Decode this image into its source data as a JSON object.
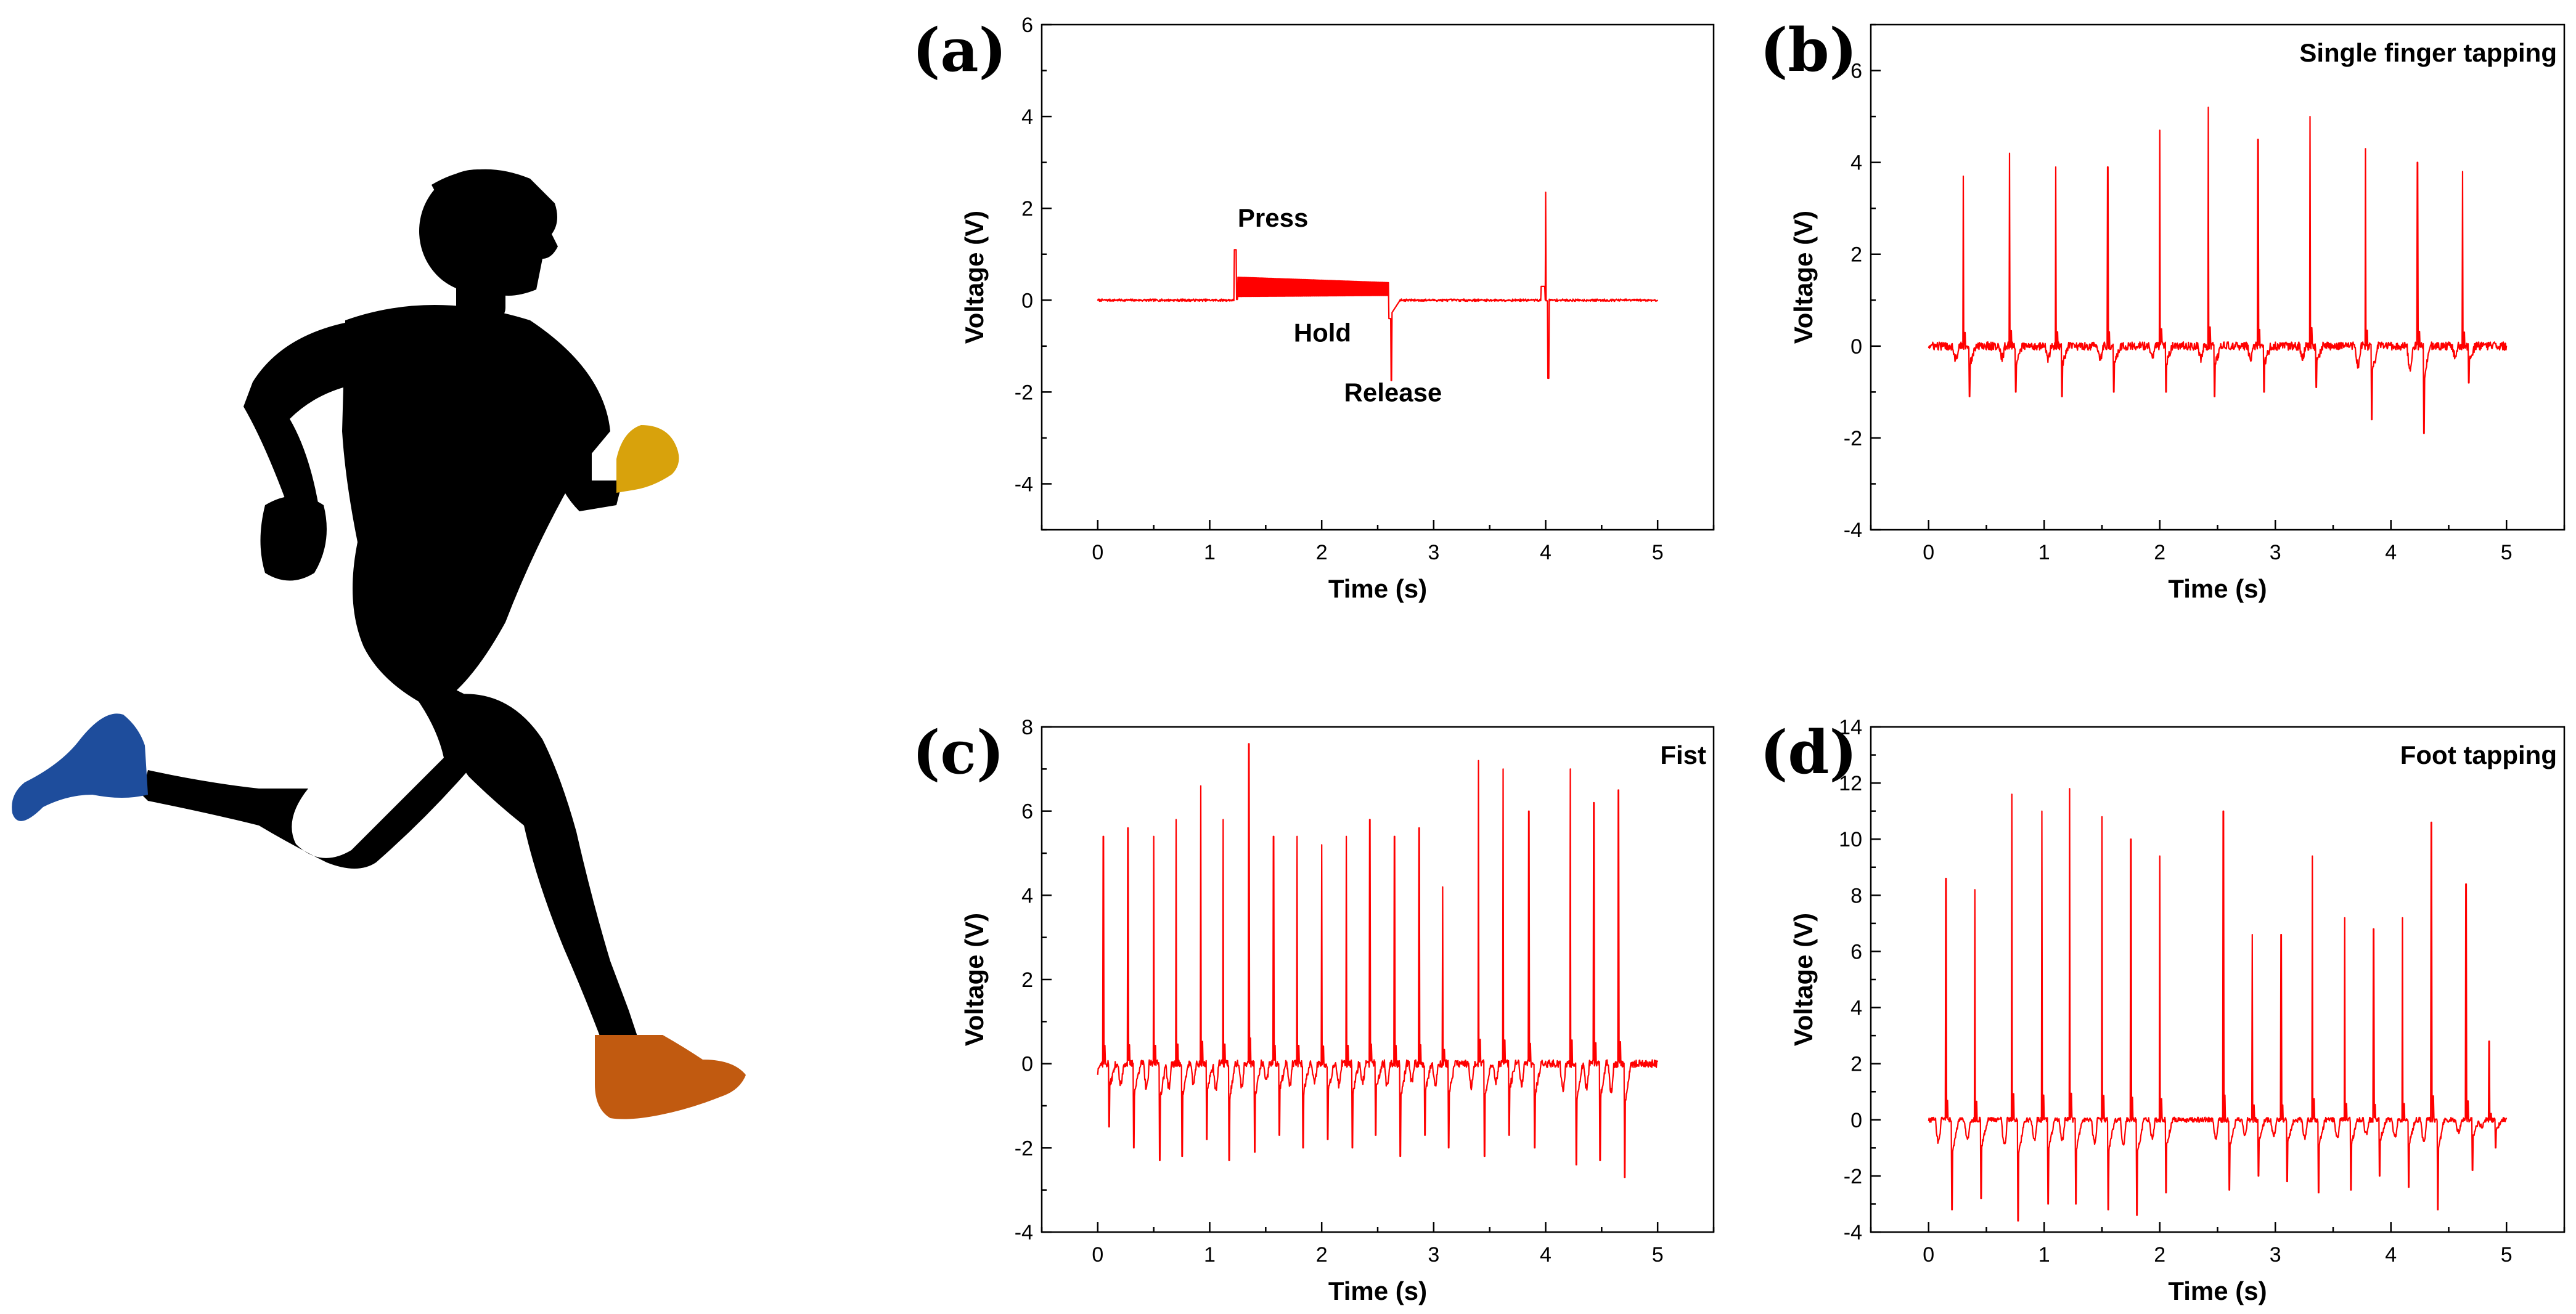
{
  "colors": {
    "series": "#ff0000",
    "body": "#000000",
    "hand": "#d8a20c",
    "back_shoe": "#1e4d9c",
    "front_shoe": "#c15a10"
  },
  "illustration": {
    "icon": "running-person-icon"
  },
  "chart_data": [
    {
      "id": "a",
      "type": "line",
      "panel_label": "(a)",
      "title": "",
      "xlabel": "Time (s)",
      "ylabel": "Voltage (V)",
      "xlim": [
        -0.5,
        5.5
      ],
      "ylim": [
        -5,
        6
      ],
      "xticks": [
        0,
        1,
        2,
        3,
        4,
        5
      ],
      "yticks": [
        -4,
        -2,
        0,
        2,
        4,
        6
      ],
      "annotations": [
        {
          "text": "Press",
          "x": 1.25,
          "y": 1.6
        },
        {
          "text": "Hold",
          "x": 1.75,
          "y": -0.9
        },
        {
          "text": "Release",
          "x": 2.2,
          "y": -2.2
        }
      ],
      "series": [
        {
          "name": "signal",
          "events": [
            {
              "t": 1.22,
              "kind": "press",
              "peak": 1.1
            },
            {
              "t_start": 1.25,
              "t_end": 2.6,
              "kind": "hold",
              "amplitude": 0.35
            },
            {
              "t": 2.62,
              "kind": "release",
              "trough": -1.75
            },
            {
              "t": 4.0,
              "kind": "spike",
              "peak": 2.35,
              "trough": -1.7
            }
          ]
        }
      ]
    },
    {
      "id": "b",
      "type": "line",
      "panel_label": "(b)",
      "title": "Single finger tapping",
      "xlabel": "Time (s)",
      "ylabel": "Voltage (V)",
      "xlim": [
        -0.5,
        5.5
      ],
      "ylim": [
        -4,
        7
      ],
      "xticks": [
        0,
        1,
        2,
        3,
        4,
        5
      ],
      "yticks": [
        -4,
        -2,
        0,
        2,
        4,
        6
      ],
      "series": [
        {
          "name": "signal",
          "peak_times": [
            0.3,
            0.7,
            1.1,
            1.55,
            2.0,
            2.42,
            2.85,
            3.3,
            3.78,
            4.23,
            4.62
          ],
          "peak_values": [
            3.7,
            4.2,
            3.9,
            3.9,
            4.7,
            5.2,
            4.5,
            5.0,
            4.3,
            4.0,
            3.8
          ],
          "trough_values": [
            -1.1,
            -1.0,
            -1.1,
            -1.0,
            -1.0,
            -1.1,
            -1.0,
            -0.9,
            -1.6,
            -1.9,
            -0.8
          ]
        }
      ]
    },
    {
      "id": "c",
      "type": "line",
      "panel_label": "(c)",
      "title": "Fist",
      "xlabel": "Time (s)",
      "ylabel": "Voltage (V)",
      "xlim": [
        -0.5,
        5.5
      ],
      "ylim": [
        -4,
        8
      ],
      "xticks": [
        0,
        1,
        2,
        3,
        4,
        5
      ],
      "yticks": [
        -4,
        -2,
        0,
        2,
        4,
        6,
        8
      ],
      "series": [
        {
          "name": "signal",
          "peak_times": [
            0.05,
            0.27,
            0.5,
            0.7,
            0.92,
            1.12,
            1.35,
            1.57,
            1.78,
            2.0,
            2.22,
            2.43,
            2.65,
            2.87,
            3.08,
            3.4,
            3.62,
            3.85,
            4.22,
            4.43,
            4.65
          ],
          "peak_values": [
            5.4,
            5.6,
            5.4,
            5.8,
            6.6,
            5.8,
            7.6,
            5.4,
            5.4,
            5.2,
            5.4,
            5.8,
            5.4,
            5.6,
            4.2,
            7.2,
            7.0,
            6.0,
            7.0,
            6.2,
            6.5
          ],
          "trough_values": [
            -1.5,
            -2.0,
            -2.3,
            -2.2,
            -1.8,
            -2.3,
            -2.1,
            -1.7,
            -2.0,
            -1.8,
            -2.0,
            -1.7,
            -2.2,
            -1.7,
            -2.0,
            -2.2,
            -1.7,
            -2.0,
            -2.4,
            -2.3,
            -2.7
          ]
        }
      ]
    },
    {
      "id": "d",
      "type": "line",
      "panel_label": "(d)",
      "title": "Foot tapping",
      "xlabel": "Time (s)",
      "ylabel": "Voltage (V)",
      "xlim": [
        -0.5,
        5.5
      ],
      "ylim": [
        -4,
        14
      ],
      "xticks": [
        0,
        1,
        2,
        3,
        4,
        5
      ],
      "yticks": [
        -4,
        -2,
        0,
        2,
        4,
        6,
        8,
        10,
        12,
        14
      ],
      "series": [
        {
          "name": "signal",
          "peak_times": [
            0.15,
            0.4,
            0.72,
            0.98,
            1.22,
            1.5,
            1.75,
            2.0,
            2.55,
            2.8,
            3.05,
            3.32,
            3.6,
            3.85,
            4.1,
            4.35,
            4.65,
            4.85
          ],
          "peak_values": [
            8.6,
            8.2,
            11.6,
            11.0,
            11.8,
            10.8,
            10.0,
            9.4,
            11.0,
            6.6,
            6.6,
            9.4,
            7.2,
            6.8,
            7.2,
            10.6,
            8.4,
            2.8
          ],
          "trough_values": [
            -3.2,
            -2.8,
            -3.6,
            -3.0,
            -3.0,
            -3.2,
            -3.4,
            -2.6,
            -2.5,
            -2.0,
            -2.2,
            -2.6,
            -2.5,
            -2.0,
            -2.4,
            -3.2,
            -1.8,
            -1.0
          ]
        }
      ]
    }
  ]
}
